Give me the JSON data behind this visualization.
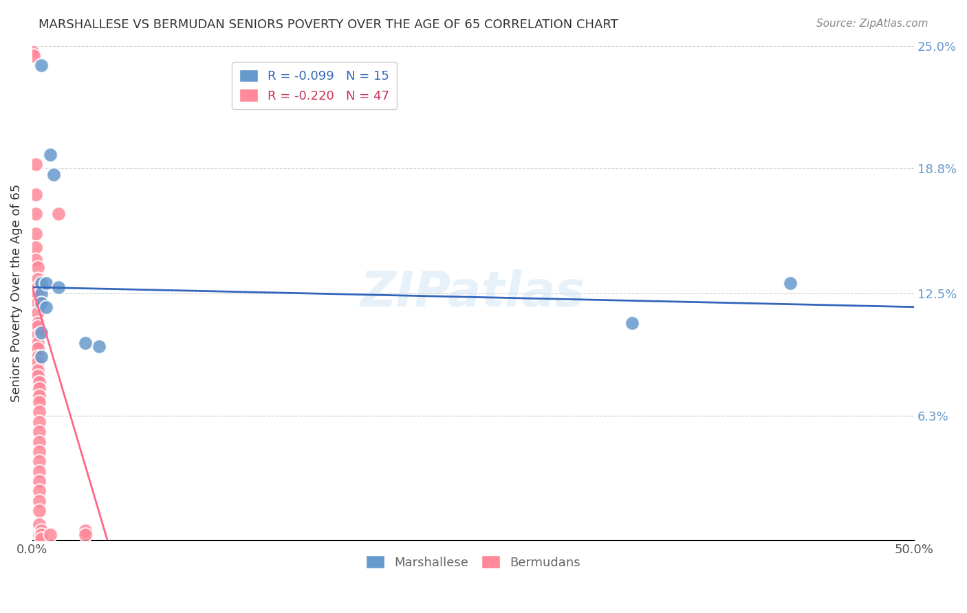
{
  "title": "MARSHALLESE VS BERMUDAN SENIORS POVERTY OVER THE AGE OF 65 CORRELATION CHART",
  "source": "Source: ZipAtlas.com",
  "xlabel_bottom": "",
  "ylabel": "Seniors Poverty Over the Age of 65",
  "xlim": [
    0.0,
    0.5
  ],
  "ylim": [
    0.0,
    0.25
  ],
  "xticks": [
    0.0,
    0.1,
    0.2,
    0.3,
    0.4,
    0.5
  ],
  "xticklabels": [
    "0.0%",
    "",
    "",
    "",
    "",
    "50.0%"
  ],
  "ytick_labels_right": [
    "25.0%",
    "18.8%",
    "12.5%",
    "6.3%"
  ],
  "ytick_values_right": [
    0.25,
    0.188,
    0.125,
    0.063
  ],
  "legend_entries": [
    {
      "label": "R = -0.099   N = 15",
      "color": "#6699cc"
    },
    {
      "label": "R = -0.220   N = 47",
      "color": "#ff8899"
    }
  ],
  "legend_bottom": [
    "Marshallese",
    "Bermudans"
  ],
  "marshallese_color": "#6699cc",
  "bermudan_color": "#ff8899",
  "watermark": "ZIPatlas",
  "blue_line_slope": -0.099,
  "pink_line_slope": -0.22,
  "marshallese_points": [
    [
      0.005,
      0.24
    ],
    [
      0.005,
      0.13
    ],
    [
      0.005,
      0.125
    ],
    [
      0.005,
      0.12
    ],
    [
      0.005,
      0.105
    ],
    [
      0.005,
      0.093
    ],
    [
      0.008,
      0.13
    ],
    [
      0.008,
      0.118
    ],
    [
      0.01,
      0.195
    ],
    [
      0.012,
      0.185
    ],
    [
      0.015,
      0.128
    ],
    [
      0.03,
      0.1
    ],
    [
      0.038,
      0.098
    ],
    [
      0.34,
      0.11
    ],
    [
      0.43,
      0.13
    ]
  ],
  "bermudan_points": [
    [
      0.0,
      0.247
    ],
    [
      0.001,
      0.245
    ],
    [
      0.002,
      0.19
    ],
    [
      0.002,
      0.175
    ],
    [
      0.002,
      0.165
    ],
    [
      0.002,
      0.155
    ],
    [
      0.002,
      0.148
    ],
    [
      0.002,
      0.142
    ],
    [
      0.003,
      0.138
    ],
    [
      0.003,
      0.132
    ],
    [
      0.003,
      0.128
    ],
    [
      0.003,
      0.124
    ],
    [
      0.003,
      0.12
    ],
    [
      0.003,
      0.115
    ],
    [
      0.003,
      0.11
    ],
    [
      0.003,
      0.108
    ],
    [
      0.003,
      0.104
    ],
    [
      0.003,
      0.1
    ],
    [
      0.003,
      0.097
    ],
    [
      0.003,
      0.093
    ],
    [
      0.003,
      0.09
    ],
    [
      0.003,
      0.086
    ],
    [
      0.003,
      0.083
    ],
    [
      0.004,
      0.08
    ],
    [
      0.004,
      0.077
    ],
    [
      0.004,
      0.073
    ],
    [
      0.004,
      0.07
    ],
    [
      0.004,
      0.065
    ],
    [
      0.004,
      0.06
    ],
    [
      0.004,
      0.055
    ],
    [
      0.004,
      0.05
    ],
    [
      0.004,
      0.045
    ],
    [
      0.004,
      0.04
    ],
    [
      0.004,
      0.035
    ],
    [
      0.004,
      0.03
    ],
    [
      0.004,
      0.025
    ],
    [
      0.004,
      0.02
    ],
    [
      0.004,
      0.015
    ],
    [
      0.004,
      0.008
    ],
    [
      0.004,
      0.003
    ],
    [
      0.005,
      0.005
    ],
    [
      0.005,
      0.003
    ],
    [
      0.005,
      0.001
    ],
    [
      0.01,
      0.003
    ],
    [
      0.015,
      0.165
    ],
    [
      0.03,
      0.005
    ],
    [
      0.03,
      0.003
    ]
  ]
}
